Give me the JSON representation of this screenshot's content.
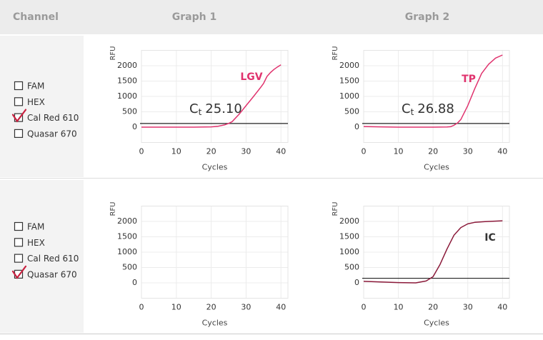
{
  "header": {
    "channel": "Channel",
    "graph1": "Graph 1",
    "graph2": "Graph 2"
  },
  "rows": [
    {
      "channels": [
        {
          "label": "FAM",
          "checked": false
        },
        {
          "label": "HEX",
          "checked": false
        },
        {
          "label": "Cal Red 610",
          "checked": true
        },
        {
          "label": "Quasar 670",
          "checked": false
        }
      ]
    },
    {
      "channels": [
        {
          "label": "FAM",
          "checked": false
        },
        {
          "label": "HEX",
          "checked": false
        },
        {
          "label": "Cal Red 610",
          "checked": false
        },
        {
          "label": "Quasar 670",
          "checked": true
        }
      ]
    }
  ],
  "chart_data": [
    {
      "type": "line",
      "ylabel": "RFU",
      "xlabel": "Cycles",
      "xlim": [
        0,
        42
      ],
      "ylim": [
        -500,
        2500
      ],
      "xticks": [
        0,
        10,
        20,
        30,
        40
      ],
      "yticks": [
        0,
        500,
        1000,
        1500,
        2000
      ],
      "grid": true,
      "threshold": 120,
      "threshold_color": "#222222",
      "x": [
        0,
        5,
        10,
        15,
        20,
        22,
        24,
        25,
        26,
        28,
        30,
        32,
        34,
        35,
        36,
        37,
        38,
        39,
        40
      ],
      "series": [
        {
          "name": "LGV",
          "color": "#e0336e",
          "values": [
            0,
            0,
            0,
            0,
            10,
            30,
            80,
            120,
            180,
            420,
            700,
            980,
            1270,
            1420,
            1650,
            1780,
            1880,
            1960,
            2030
          ]
        }
      ],
      "annotations": [
        {
          "text": "C",
          "sub": "t",
          "value": "25.10"
        }
      ]
    },
    {
      "type": "line",
      "ylabel": "RFU",
      "xlabel": "Cycles",
      "xlim": [
        0,
        42
      ],
      "ylim": [
        -500,
        2500
      ],
      "xticks": [
        0,
        10,
        20,
        30,
        40
      ],
      "yticks": [
        0,
        500,
        1000,
        1500,
        2000
      ],
      "grid": true,
      "threshold": 120,
      "threshold_color": "#222222",
      "x": [
        0,
        5,
        10,
        15,
        20,
        24,
        25,
        26,
        27,
        28,
        30,
        32,
        34,
        36,
        38,
        40
      ],
      "series": [
        {
          "name": "TP",
          "color": "#e0336e",
          "values": [
            20,
            10,
            0,
            0,
            0,
            5,
            15,
            60,
            130,
            250,
            700,
            1250,
            1750,
            2050,
            2250,
            2350
          ]
        }
      ],
      "annotations": [
        {
          "text": "C",
          "sub": "t",
          "value": "26.88"
        }
      ]
    },
    {
      "type": "line",
      "ylabel": "RFU",
      "xlabel": "Cycles",
      "xlim": [
        0,
        42
      ],
      "ylim": [
        -500,
        2500
      ],
      "xticks": [
        0,
        10,
        20,
        30,
        40
      ],
      "yticks": [
        0,
        500,
        1000,
        1500,
        2000
      ],
      "grid": true,
      "x": [],
      "series": [],
      "annotations": []
    },
    {
      "type": "line",
      "ylabel": "RFU",
      "xlabel": "Cycles",
      "xlim": [
        0,
        42
      ],
      "ylim": [
        -500,
        2500
      ],
      "xticks": [
        0,
        10,
        20,
        30,
        40
      ],
      "yticks": [
        0,
        500,
        1000,
        1500,
        2000
      ],
      "grid": true,
      "threshold": 150,
      "threshold_color": "#222222",
      "x": [
        0,
        5,
        10,
        15,
        18,
        20,
        22,
        24,
        26,
        28,
        30,
        32,
        35,
        40
      ],
      "series": [
        {
          "name": "IC",
          "color": "#8b1a3a",
          "label_color": "#333333",
          "values": [
            50,
            30,
            10,
            0,
            60,
            200,
            600,
            1100,
            1550,
            1800,
            1920,
            1970,
            1995,
            2020
          ]
        }
      ],
      "annotations": []
    }
  ]
}
